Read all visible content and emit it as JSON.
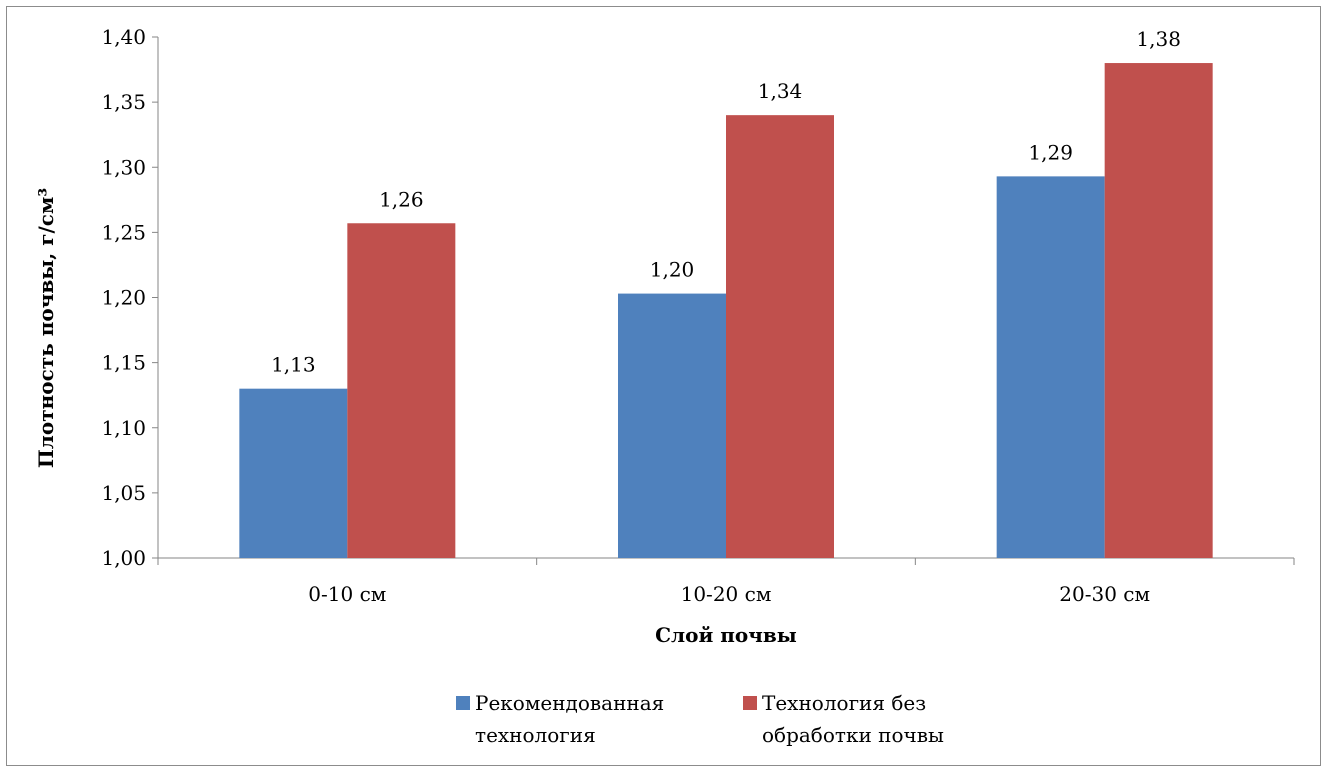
{
  "chart_data": {
    "type": "bar",
    "categories": [
      "0-10 см",
      "10-20 см",
      "20-30 см"
    ],
    "series": [
      {
        "name_lines": [
          "Рекомендованная",
          "технология"
        ],
        "values": [
          1.13,
          1.2,
          1.29
        ],
        "labels": [
          "1,13",
          "1,20",
          "1,29"
        ],
        "color": "#4f81bd",
        "plot_values": [
          1.13,
          1.203,
          1.293
        ]
      },
      {
        "name_lines": [
          "Технология без",
          "обработки почвы"
        ],
        "values": [
          1.26,
          1.34,
          1.38
        ],
        "labels": [
          "1,26",
          "1,34",
          "1,38"
        ],
        "color": "#c0504d",
        "plot_values": [
          1.257,
          1.34,
          1.38
        ]
      }
    ],
    "xlabel": "Слой почвы",
    "ylabel": "Плотность почвы, г/см³",
    "ylim": [
      1.0,
      1.4
    ],
    "yticks": [
      1.0,
      1.05,
      1.1,
      1.15,
      1.2,
      1.25,
      1.3,
      1.35,
      1.4
    ],
    "ytick_labels": [
      "1,00",
      "1,05",
      "1,10",
      "1,15",
      "1,20",
      "1,25",
      "1,30",
      "1,35",
      "1,40"
    ],
    "grid": false,
    "legend_position": "bottom"
  }
}
